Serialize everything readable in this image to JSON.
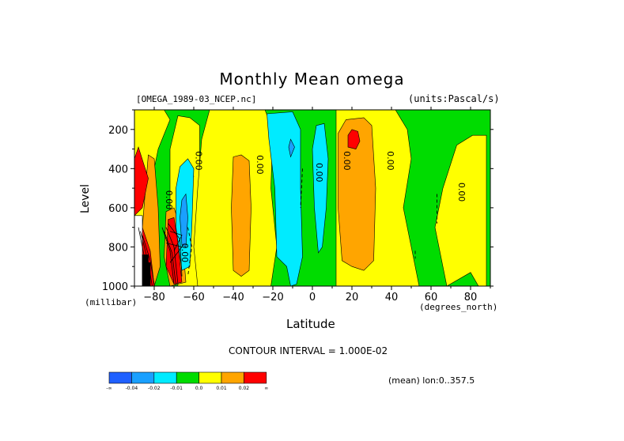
{
  "chart_data": {
    "type": "heatmap",
    "title": "Monthly Mean omega",
    "subtitle": "[OMEGA_1989-03_NCEP.nc]",
    "units": "(units:Pascal/s)",
    "xlabel": "Latitude",
    "x_units": "(degrees_north)",
    "ylabel": "Level",
    "y_units": "(millibar)",
    "xlim": [
      -90,
      90
    ],
    "ylim": [
      1000,
      100
    ],
    "x_ticks": [
      -80,
      -60,
      -40,
      -20,
      0,
      20,
      40,
      60,
      80
    ],
    "x_tick_labels": [
      "−80",
      "−60",
      "−40",
      "−20",
      "0",
      "20",
      "40",
      "60",
      "80"
    ],
    "y_ticks": [
      200,
      400,
      600,
      800,
      1000
    ],
    "contour_interval_text": "CONTOUR INTERVAL = 1.000E-02",
    "mean_text": "(mean) lon:0..357.5",
    "contour_labels": [
      {
        "lat": -74,
        "level": 560,
        "text": "0.00"
      },
      {
        "lat": -59,
        "level": 360,
        "text": "0.00"
      },
      {
        "lat": -28,
        "level": 380,
        "text": "0.00"
      },
      {
        "lat": 2,
        "level": 420,
        "text": "0.00"
      },
      {
        "lat": 16,
        "level": 360,
        "text": "0.00"
      },
      {
        "lat": 38,
        "level": 360,
        "text": "0.00"
      },
      {
        "lat": 74,
        "level": 520,
        "text": "0.00"
      },
      {
        "lat": -66,
        "level": 830,
        "text": "0.00"
      }
    ],
    "legend": {
      "bins": [
        {
          "color": "#1f60ff",
          "label": "-∞"
        },
        {
          "color": "#1aa0ff",
          "label": "-0.04"
        },
        {
          "color": "#00ebff",
          "label": "-0.02"
        },
        {
          "color": "#00dc00",
          "label": "-0.01"
        },
        {
          "color": "#ffff00",
          "label": "0.0"
        },
        {
          "color": "#ffa500",
          "label": "0.01"
        },
        {
          "color": "#ff0000",
          "label": "0.02"
        }
      ],
      "end_label": "∞"
    },
    "regions": [
      {
        "color": "#00dc00",
        "points": [
          [
            -90,
            100
          ],
          [
            90,
            100
          ],
          [
            90,
            1000
          ],
          [
            -90,
            1000
          ]
        ]
      },
      {
        "color": "#ffff00",
        "points": [
          [
            -90,
            100
          ],
          [
            -75,
            100
          ],
          [
            -72,
            150
          ],
          [
            -78,
            300
          ],
          [
            -84,
            600
          ],
          [
            -86,
            1000
          ],
          [
            -90,
            1000
          ]
        ]
      },
      {
        "color": "#ffff00",
        "points": [
          [
            -68,
            130
          ],
          [
            -62,
            140
          ],
          [
            -57,
            180
          ],
          [
            -57,
            600
          ],
          [
            -56,
            1000
          ],
          [
            -68,
            1000
          ],
          [
            -72,
            600
          ],
          [
            -72,
            300
          ]
        ]
      },
      {
        "color": "#ffff00",
        "points": [
          [
            -52,
            100
          ],
          [
            -24,
            100
          ],
          [
            -20,
            200
          ],
          [
            -21,
            500
          ],
          [
            -18,
            800
          ],
          [
            -21,
            1000
          ],
          [
            -58,
            1000
          ],
          [
            -60,
            800
          ],
          [
            -58,
            500
          ],
          [
            -56,
            250
          ]
        ]
      },
      {
        "color": "#ffff00",
        "points": [
          [
            12,
            100
          ],
          [
            42,
            100
          ],
          [
            48,
            200
          ],
          [
            50,
            350
          ],
          [
            46,
            600
          ],
          [
            54,
            1000
          ],
          [
            12,
            1000
          ]
        ]
      },
      {
        "color": "#ffff00",
        "points": [
          [
            73,
            280
          ],
          [
            81,
            230
          ],
          [
            88,
            230
          ],
          [
            88,
            1000
          ],
          [
            84,
            1000
          ],
          [
            80,
            930
          ],
          [
            68,
            1000
          ],
          [
            62,
            700
          ],
          [
            66,
            500
          ]
        ]
      },
      {
        "color": "#ffff00",
        "points": [
          [
            -64,
            400
          ],
          [
            -62,
            380
          ],
          [
            -60,
            440
          ],
          [
            -62,
            480
          ],
          [
            -65,
            460
          ]
        ]
      },
      {
        "color": "#ffa500",
        "points": [
          [
            -40,
            340
          ],
          [
            -36,
            330
          ],
          [
            -32,
            360
          ],
          [
            -31,
            600
          ],
          [
            -32,
            920
          ],
          [
            -36,
            950
          ],
          [
            -40,
            920
          ],
          [
            -41,
            600
          ]
        ]
      },
      {
        "color": "#ffa500",
        "points": [
          [
            13,
            220
          ],
          [
            17,
            150
          ],
          [
            26,
            140
          ],
          [
            30,
            180
          ],
          [
            32,
            500
          ],
          [
            31,
            870
          ],
          [
            26,
            920
          ],
          [
            20,
            900
          ],
          [
            15,
            870
          ],
          [
            13,
            600
          ]
        ]
      },
      {
        "color": "#ffa500",
        "points": [
          [
            -83,
            330
          ],
          [
            -80,
            350
          ],
          [
            -78,
            600
          ],
          [
            -77,
            900
          ],
          [
            -80,
            1000
          ],
          [
            -88,
            1000
          ],
          [
            -86,
            700
          ]
        ]
      },
      {
        "color": "#ffa500",
        "points": [
          [
            -74,
            620
          ],
          [
            -70,
            600
          ],
          [
            -66,
            720
          ],
          [
            -64,
            980
          ],
          [
            -72,
            1000
          ],
          [
            -75,
            850
          ]
        ]
      },
      {
        "color": "#ff0000",
        "points": [
          [
            -90,
            350
          ],
          [
            -88,
            290
          ],
          [
            -83,
            450
          ],
          [
            -86,
            600
          ],
          [
            -90,
            640
          ]
        ]
      },
      {
        "color": "#ff0000",
        "points": [
          [
            -90,
            690
          ],
          [
            -86,
            700
          ],
          [
            -82,
            820
          ],
          [
            -80,
            1000
          ],
          [
            -90,
            1000
          ]
        ]
      },
      {
        "color": "#ff0000",
        "points": [
          [
            -73,
            660
          ],
          [
            -70,
            650
          ],
          [
            -68,
            780
          ],
          [
            -66,
            980
          ],
          [
            -70,
            990
          ],
          [
            -74,
            900
          ]
        ]
      },
      {
        "color": "#ff0000",
        "points": [
          [
            18,
            230
          ],
          [
            20,
            200
          ],
          [
            23,
            210
          ],
          [
            24,
            260
          ],
          [
            22,
            300
          ],
          [
            18,
            290
          ]
        ]
      },
      {
        "color": "#00ebff",
        "points": [
          [
            -67,
            390
          ],
          [
            -63,
            350
          ],
          [
            -60,
            400
          ],
          [
            -61,
            700
          ],
          [
            -62,
            900
          ],
          [
            -66,
            920
          ],
          [
            -69,
            700
          ],
          [
            -69,
            500
          ]
        ]
      },
      {
        "color": "#00ebff",
        "points": [
          [
            -23,
            120
          ],
          [
            -10,
            110
          ],
          [
            -6,
            200
          ],
          [
            -6,
            500
          ],
          [
            -5,
            850
          ],
          [
            -8,
            990
          ],
          [
            -11,
            1000
          ],
          [
            -13,
            900
          ],
          [
            -18,
            850
          ],
          [
            -19,
            500
          ],
          [
            -22,
            250
          ]
        ]
      },
      {
        "color": "#00ebff",
        "points": [
          [
            2,
            180
          ],
          [
            6,
            170
          ],
          [
            8,
            350
          ],
          [
            7,
            600
          ],
          [
            5,
            800
          ],
          [
            3,
            830
          ],
          [
            1,
            600
          ],
          [
            0,
            300
          ]
        ]
      },
      {
        "color": "#1aa0ff",
        "points": [
          [
            -66,
            560
          ],
          [
            -64,
            530
          ],
          [
            -63,
            650
          ],
          [
            -64,
            800
          ],
          [
            -66,
            790
          ],
          [
            -67,
            650
          ]
        ]
      },
      {
        "color": "#1aa0ff",
        "points": [
          [
            -12,
            290
          ],
          [
            -11,
            250
          ],
          [
            -9,
            290
          ],
          [
            -11,
            340
          ]
        ]
      },
      {
        "color": "#ffffff",
        "points": [
          [
            -90,
            640
          ],
          [
            -86,
            640
          ],
          [
            -86,
            1000
          ],
          [
            -90,
            1000
          ]
        ]
      },
      {
        "color": "#000000",
        "points": [
          [
            -86,
            840
          ],
          [
            -83,
            840
          ],
          [
            -83,
            880
          ],
          [
            -82,
            880
          ],
          [
            -82,
            1000
          ],
          [
            -86,
            1000
          ]
        ]
      }
    ],
    "dashed_lines": [
      [
        [
          -63,
          700
        ],
        [
          -61,
          800
        ],
        [
          -63,
          950
        ]
      ],
      [
        [
          63,
          530
        ],
        [
          63,
          680
        ]
      ],
      [
        [
          52,
          820
        ],
        [
          52,
          860
        ]
      ],
      [
        [
          -5,
          400
        ],
        [
          -6,
          600
        ]
      ]
    ],
    "solid_lines": [
      [
        [
          -88,
          700
        ],
        [
          -84,
          900
        ],
        [
          -82,
          1000
        ]
      ],
      [
        [
          -87,
          720
        ],
        [
          -83,
          880
        ],
        [
          -81,
          1000
        ]
      ],
      [
        [
          -86,
          740
        ],
        [
          -82,
          870
        ],
        [
          -80,
          990
        ]
      ],
      [
        [
          -76,
          700
        ],
        [
          -72,
          820
        ],
        [
          -70,
          990
        ]
      ],
      [
        [
          -75,
          720
        ],
        [
          -71,
          830
        ],
        [
          -69,
          995
        ]
      ],
      [
        [
          -74,
          700
        ],
        [
          -70,
          800
        ],
        [
          -68,
          990
        ]
      ],
      [
        [
          -73,
          680
        ],
        [
          -67,
          760
        ],
        [
          -66,
          950
        ]
      ],
      [
        [
          -72,
          720
        ],
        [
          -66,
          740
        ],
        [
          -70,
          820
        ]
      ],
      [
        [
          -74,
          780
        ],
        [
          -66,
          800
        ],
        [
          -72,
          880
        ]
      ]
    ]
  }
}
